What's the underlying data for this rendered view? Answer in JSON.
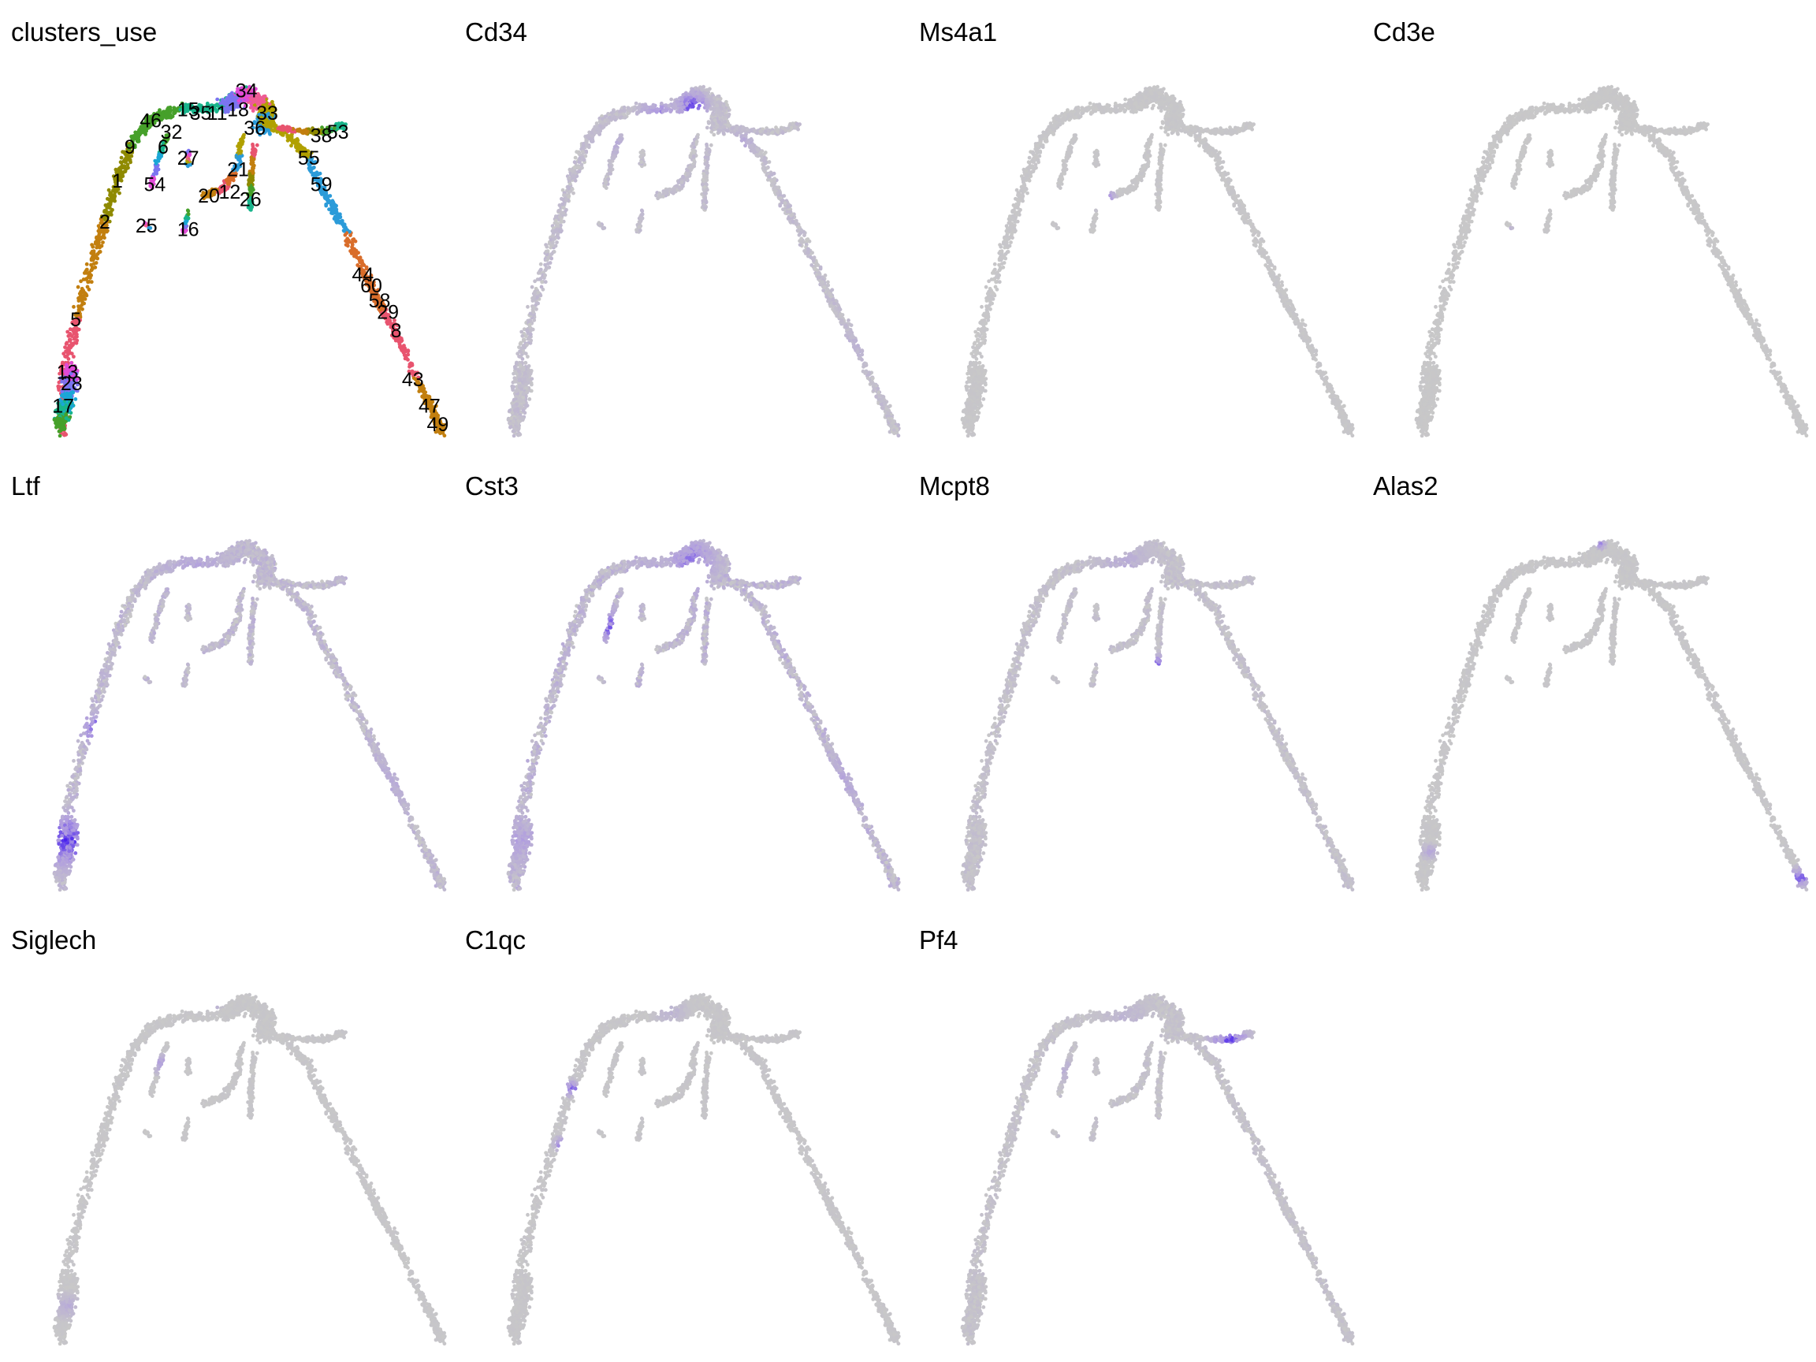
{
  "chart_data": [
    {
      "type": "scatter",
      "title": "clusters_use",
      "mode": "clusters",
      "cluster_labels": [
        {
          "label": "34",
          "x": 0.52,
          "y": 0.94
        },
        {
          "label": "15",
          "x": 0.38,
          "y": 0.89
        },
        {
          "label": "35",
          "x": 0.41,
          "y": 0.88
        },
        {
          "label": "11",
          "x": 0.45,
          "y": 0.88
        },
        {
          "label": "18",
          "x": 0.5,
          "y": 0.89
        },
        {
          "label": "33",
          "x": 0.57,
          "y": 0.88
        },
        {
          "label": "46",
          "x": 0.29,
          "y": 0.86
        },
        {
          "label": "32",
          "x": 0.34,
          "y": 0.83
        },
        {
          "label": "36",
          "x": 0.54,
          "y": 0.84
        },
        {
          "label": "38",
          "x": 0.7,
          "y": 0.82
        },
        {
          "label": "53",
          "x": 0.74,
          "y": 0.83
        },
        {
          "label": "9",
          "x": 0.24,
          "y": 0.79
        },
        {
          "label": "6",
          "x": 0.32,
          "y": 0.79
        },
        {
          "label": "27",
          "x": 0.38,
          "y": 0.76
        },
        {
          "label": "55",
          "x": 0.67,
          "y": 0.76
        },
        {
          "label": "21",
          "x": 0.5,
          "y": 0.73
        },
        {
          "label": "1",
          "x": 0.21,
          "y": 0.7
        },
        {
          "label": "54",
          "x": 0.3,
          "y": 0.69
        },
        {
          "label": "59",
          "x": 0.7,
          "y": 0.69
        },
        {
          "label": "20",
          "x": 0.43,
          "y": 0.66
        },
        {
          "label": "12",
          "x": 0.48,
          "y": 0.67
        },
        {
          "label": "26",
          "x": 0.53,
          "y": 0.65
        },
        {
          "label": "2",
          "x": 0.18,
          "y": 0.59
        },
        {
          "label": "25",
          "x": 0.28,
          "y": 0.58
        },
        {
          "label": "16",
          "x": 0.38,
          "y": 0.57
        },
        {
          "label": "44",
          "x": 0.8,
          "y": 0.45
        },
        {
          "label": "60",
          "x": 0.82,
          "y": 0.42
        },
        {
          "label": "58",
          "x": 0.84,
          "y": 0.38
        },
        {
          "label": "29",
          "x": 0.86,
          "y": 0.35
        },
        {
          "label": "5",
          "x": 0.11,
          "y": 0.33
        },
        {
          "label": "8",
          "x": 0.88,
          "y": 0.3
        },
        {
          "label": "13",
          "x": 0.09,
          "y": 0.19
        },
        {
          "label": "43",
          "x": 0.92,
          "y": 0.17
        },
        {
          "label": "28",
          "x": 0.1,
          "y": 0.16
        },
        {
          "label": "47",
          "x": 0.96,
          "y": 0.1
        },
        {
          "label": "17",
          "x": 0.08,
          "y": 0.1
        },
        {
          "label": "49",
          "x": 0.98,
          "y": 0.05
        }
      ],
      "colors": [
        "#e8546f",
        "#c27f0f",
        "#8f8a00",
        "#46a02a",
        "#18b48b",
        "#1aa7d6",
        "#7b74f0",
        "#e04ad6",
        "#ef5c94",
        "#b0a000",
        "#2b9bd9",
        "#d96d2a"
      ]
    },
    {
      "type": "scatter",
      "title": "Cd34",
      "mode": "expression",
      "hotspots": [
        {
          "x": 0.5,
          "y": 0.9,
          "r": 0.06,
          "w": 1.0
        },
        {
          "x": 0.42,
          "y": 0.87,
          "r": 0.08,
          "w": 0.75
        },
        {
          "x": 0.3,
          "y": 0.8,
          "r": 0.07,
          "w": 0.5
        },
        {
          "x": 0.38,
          "y": 0.65,
          "r": 0.05,
          "w": 0.5
        },
        {
          "x": 0.62,
          "y": 0.8,
          "r": 0.06,
          "w": 0.45
        },
        {
          "x": 0.88,
          "y": 0.25,
          "r": 0.1,
          "w": 0.35
        }
      ],
      "base": 0.2
    },
    {
      "type": "scatter",
      "title": "Ms4a1",
      "mode": "expression",
      "hotspots": [
        {
          "x": 0.4,
          "y": 0.65,
          "r": 0.04,
          "w": 1.0
        },
        {
          "x": 0.3,
          "y": 0.6,
          "r": 0.03,
          "w": 0.4
        }
      ],
      "base": 0.04
    },
    {
      "type": "scatter",
      "title": "Cd3e",
      "mode": "expression",
      "hotspots": [
        {
          "x": 0.28,
          "y": 0.56,
          "r": 0.02,
          "w": 1.0
        }
      ],
      "base": 0.02
    },
    {
      "type": "scatter",
      "title": "Ltf",
      "mode": "expression",
      "hotspots": [
        {
          "x": 0.09,
          "y": 0.15,
          "r": 0.12,
          "w": 1.0
        },
        {
          "x": 0.16,
          "y": 0.45,
          "r": 0.07,
          "w": 0.9
        },
        {
          "x": 0.4,
          "y": 0.88,
          "r": 0.15,
          "w": 0.5
        },
        {
          "x": 0.85,
          "y": 0.3,
          "r": 0.15,
          "w": 0.45
        }
      ],
      "base": 0.3
    },
    {
      "type": "scatter",
      "title": "Cst3",
      "mode": "expression",
      "hotspots": [
        {
          "x": 0.3,
          "y": 0.72,
          "r": 0.08,
          "w": 0.9
        },
        {
          "x": 0.5,
          "y": 0.9,
          "r": 0.1,
          "w": 0.8
        },
        {
          "x": 0.4,
          "y": 0.85,
          "r": 0.1,
          "w": 0.6
        },
        {
          "x": 0.09,
          "y": 0.15,
          "r": 0.12,
          "w": 0.55
        },
        {
          "x": 0.85,
          "y": 0.3,
          "r": 0.15,
          "w": 0.5
        }
      ],
      "base": 0.35
    },
    {
      "type": "scatter",
      "title": "Mcpt8",
      "mode": "expression",
      "hotspots": [
        {
          "x": 0.53,
          "y": 0.62,
          "r": 0.04,
          "w": 1.0
        },
        {
          "x": 0.45,
          "y": 0.88,
          "r": 0.12,
          "w": 0.4
        }
      ],
      "base": 0.15
    },
    {
      "type": "scatter",
      "title": "Alas2",
      "mode": "expression",
      "hotspots": [
        {
          "x": 0.98,
          "y": 0.05,
          "r": 0.04,
          "w": 1.0
        },
        {
          "x": 0.5,
          "y": 0.94,
          "r": 0.02,
          "w": 0.8
        },
        {
          "x": 0.09,
          "y": 0.12,
          "r": 0.03,
          "w": 0.5
        }
      ],
      "base": 0.04
    },
    {
      "type": "scatter",
      "title": "Siglech",
      "mode": "expression",
      "hotspots": [
        {
          "x": 0.33,
          "y": 0.76,
          "r": 0.04,
          "w": 1.0
        },
        {
          "x": 0.44,
          "y": 0.94,
          "r": 0.04,
          "w": 0.7
        },
        {
          "x": 0.09,
          "y": 0.12,
          "r": 0.05,
          "w": 0.4
        }
      ],
      "base": 0.04
    },
    {
      "type": "scatter",
      "title": "C1qc",
      "mode": "expression",
      "hotspots": [
        {
          "x": 0.21,
          "y": 0.7,
          "r": 0.03,
          "w": 1.0
        },
        {
          "x": 0.19,
          "y": 0.55,
          "r": 0.03,
          "w": 1.0
        },
        {
          "x": 0.45,
          "y": 0.9,
          "r": 0.06,
          "w": 0.3
        }
      ],
      "base": 0.05
    },
    {
      "type": "scatter",
      "title": "Pf4",
      "mode": "expression",
      "hotspots": [
        {
          "x": 0.7,
          "y": 0.83,
          "r": 0.07,
          "w": 1.0
        },
        {
          "x": 0.3,
          "y": 0.75,
          "r": 0.05,
          "w": 0.4
        },
        {
          "x": 0.45,
          "y": 0.88,
          "r": 0.1,
          "w": 0.3
        }
      ],
      "base": 0.12
    }
  ]
}
